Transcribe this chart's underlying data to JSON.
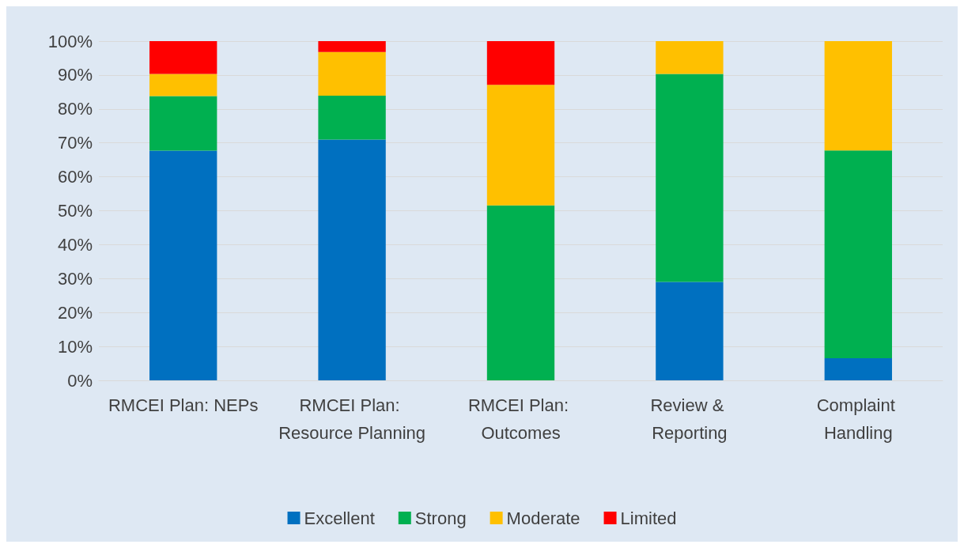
{
  "chart_data": {
    "type": "bar",
    "stacked": true,
    "categories": [
      "RMCEI Plan: NEPs",
      "RMCEI Plan: Resource Planning",
      "RMCEI Plan: Outcomes",
      "Review & Reporting",
      "Complaint Handling"
    ],
    "series": [
      {
        "name": "Excellent",
        "color": "#0070c0",
        "values": [
          67.7,
          71.0,
          0,
          29.0,
          6.5
        ]
      },
      {
        "name": "Strong",
        "color": "#00b050",
        "values": [
          16.1,
          12.9,
          51.6,
          61.3,
          61.3
        ]
      },
      {
        "name": "Moderate",
        "color": "#ffc000",
        "values": [
          6.5,
          12.9,
          35.5,
          9.7,
          32.3
        ]
      },
      {
        "name": "Limited",
        "color": "#ff0000",
        "values": [
          9.7,
          3.2,
          12.9,
          0,
          0
        ]
      }
    ],
    "ylim": [
      0,
      100
    ],
    "yticks": [
      {
        "value": 0,
        "label": "0%"
      },
      {
        "value": 10,
        "label": "10%"
      },
      {
        "value": 20,
        "label": "20%"
      },
      {
        "value": 30,
        "label": "30%"
      },
      {
        "value": 40,
        "label": "40%"
      },
      {
        "value": 50,
        "label": "50%"
      },
      {
        "value": 60,
        "label": "60%"
      },
      {
        "value": 70,
        "label": "70%"
      },
      {
        "value": 80,
        "label": "80%"
      },
      {
        "value": 90,
        "label": "90%"
      },
      {
        "value": 100,
        "label": "100%"
      }
    ],
    "grid": "y",
    "legend": "bottom"
  }
}
